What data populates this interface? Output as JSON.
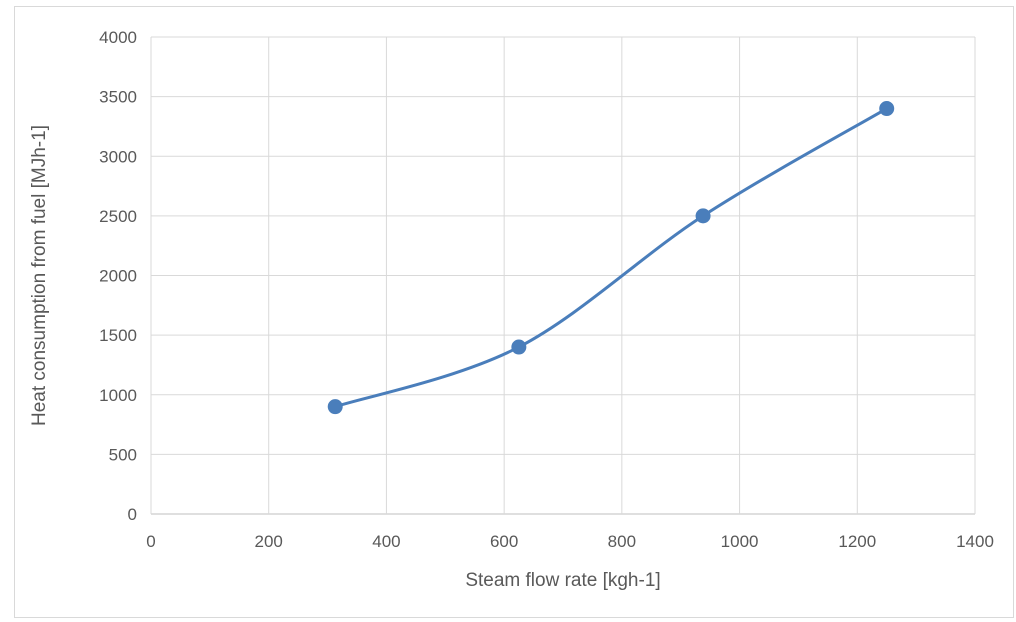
{
  "chart_data": {
    "type": "scatter",
    "title": "",
    "xlabel": "Steam flow rate [kgh-1]",
    "ylabel": "Heat consumption from fuel [MJh-1]",
    "xlim": [
      0,
      1400
    ],
    "ylim": [
      0,
      4000
    ],
    "xticks": [
      0,
      200,
      400,
      600,
      800,
      1000,
      1200,
      1400
    ],
    "yticks": [
      0,
      500,
      1000,
      1500,
      2000,
      2500,
      3000,
      3500,
      4000
    ],
    "grid": true,
    "legend": "none",
    "smooth_line": true,
    "series": [
      {
        "x": [
          313,
          625,
          938,
          1250
        ],
        "y": [
          900,
          1400,
          2500,
          3400
        ],
        "color": "#4a7ebb"
      }
    ]
  }
}
